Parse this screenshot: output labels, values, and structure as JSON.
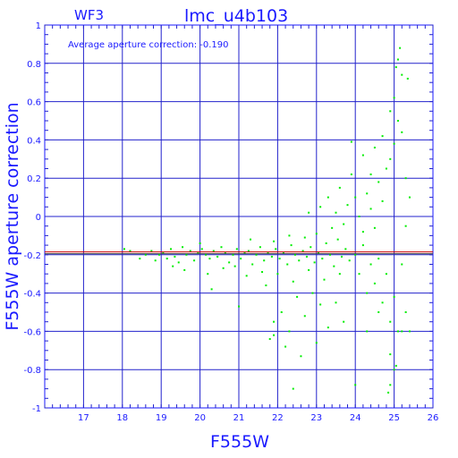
{
  "chart_data": {
    "type": "scatter",
    "title": "lmc_u4b103",
    "subtitle": "WF3",
    "annotation": "Average aperture correction: -0.190",
    "xlabel": "F555W",
    "ylabel": "F555W aperture correction",
    "xlim": [
      16,
      26
    ],
    "ylim": [
      -1,
      1
    ],
    "xticks": [
      "17",
      "18",
      "19",
      "20",
      "21",
      "22",
      "23",
      "24",
      "25",
      "26"
    ],
    "yticks": [
      "-1",
      "-0.8",
      "-0.6",
      "-0.4",
      "-0.2",
      "0",
      "0.2",
      "0.4",
      "0.6",
      "0.8",
      "1"
    ],
    "grid": true,
    "average_line": -0.19,
    "colors": {
      "axes": "#1a1aff",
      "grid": "#2222cc",
      "points": "#00ee00",
      "average_line": "#cc0000"
    },
    "series": [
      {
        "points": [
          [
            18.05,
            -0.17
          ],
          [
            18.2,
            -0.18
          ],
          [
            18.45,
            -0.22
          ],
          [
            18.6,
            -0.2
          ],
          [
            18.75,
            -0.18
          ],
          [
            18.85,
            -0.23
          ],
          [
            18.95,
            -0.2
          ],
          [
            19.05,
            -0.19
          ],
          [
            19.15,
            -0.22
          ],
          [
            19.25,
            -0.17
          ],
          [
            19.35,
            -0.21
          ],
          [
            19.45,
            -0.24
          ],
          [
            19.55,
            -0.16
          ],
          [
            19.65,
            -0.2
          ],
          [
            19.75,
            -0.18
          ],
          [
            19.85,
            -0.23
          ],
          [
            19.95,
            -0.19
          ],
          [
            20.05,
            -0.17
          ],
          [
            20.15,
            -0.2
          ],
          [
            20.25,
            -0.22
          ],
          [
            20.35,
            -0.18
          ],
          [
            20.45,
            -0.21
          ],
          [
            20.55,
            -0.16
          ],
          [
            20.65,
            -0.19
          ],
          [
            20.75,
            -0.24
          ],
          [
            20.85,
            -0.2
          ],
          [
            20.95,
            -0.17
          ],
          [
            21.05,
            -0.22
          ],
          [
            21.15,
            -0.19
          ],
          [
            21.25,
            -0.18
          ],
          [
            21.35,
            -0.25
          ],
          [
            21.45,
            -0.2
          ],
          [
            21.55,
            -0.16
          ],
          [
            21.65,
            -0.23
          ],
          [
            21.75,
            -0.19
          ],
          [
            21.85,
            -0.21
          ],
          [
            21.95,
            -0.17
          ],
          [
            22.05,
            -0.22
          ],
          [
            22.15,
            -0.19
          ],
          [
            22.25,
            -0.25
          ],
          [
            22.35,
            -0.15
          ],
          [
            22.45,
            -0.2
          ],
          [
            22.55,
            -0.23
          ],
          [
            22.65,
            -0.18
          ],
          [
            22.75,
            -0.21
          ],
          [
            22.85,
            -0.16
          ],
          [
            22.95,
            -0.24
          ],
          [
            23.05,
            -0.19
          ],
          [
            23.15,
            -0.22
          ],
          [
            23.25,
            -0.14
          ],
          [
            23.35,
            -0.2
          ],
          [
            23.45,
            -0.26
          ],
          [
            23.55,
            -0.12
          ],
          [
            23.65,
            -0.21
          ],
          [
            23.75,
            -0.17
          ],
          [
            23.85,
            -0.23
          ],
          [
            19.6,
            -0.28
          ],
          [
            20.2,
            -0.3
          ],
          [
            20.6,
            -0.27
          ],
          [
            21.2,
            -0.31
          ],
          [
            21.6,
            -0.29
          ],
          [
            22.0,
            -0.3
          ],
          [
            22.4,
            -0.34
          ],
          [
            22.8,
            -0.28
          ],
          [
            23.2,
            -0.33
          ],
          [
            23.6,
            -0.3
          ],
          [
            21.3,
            -0.12
          ],
          [
            21.9,
            -0.13
          ],
          [
            22.3,
            -0.1
          ],
          [
            22.7,
            -0.11
          ],
          [
            23.0,
            -0.09
          ],
          [
            23.4,
            -0.06
          ],
          [
            23.7,
            -0.04
          ],
          [
            19.3,
            -0.26
          ],
          [
            20.0,
            -0.14
          ],
          [
            20.9,
            -0.26
          ],
          [
            20.3,
            -0.38
          ],
          [
            21.0,
            -0.47
          ],
          [
            21.7,
            -0.36
          ],
          [
            21.9,
            -0.55
          ],
          [
            22.1,
            -0.5
          ],
          [
            22.3,
            -0.6
          ],
          [
            22.5,
            -0.42
          ],
          [
            22.7,
            -0.52
          ],
          [
            22.9,
            -0.4
          ],
          [
            23.1,
            -0.46
          ],
          [
            23.3,
            -0.58
          ],
          [
            23.5,
            -0.45
          ],
          [
            23.7,
            -0.55
          ],
          [
            21.8,
            -0.64
          ],
          [
            21.9,
            -0.62
          ],
          [
            22.6,
            -0.73
          ],
          [
            22.4,
            -0.9
          ],
          [
            22.2,
            -0.68
          ],
          [
            23.0,
            -0.66
          ],
          [
            22.8,
            0.02
          ],
          [
            23.1,
            0.05
          ],
          [
            23.3,
            0.1
          ],
          [
            23.5,
            0.02
          ],
          [
            23.6,
            0.15
          ],
          [
            23.8,
            0.06
          ],
          [
            23.9,
            0.22
          ],
          [
            24.0,
            0.1
          ],
          [
            24.1,
            0.0
          ],
          [
            24.2,
            -0.08
          ],
          [
            24.3,
            0.12
          ],
          [
            24.4,
            0.04
          ],
          [
            24.5,
            -0.06
          ],
          [
            24.6,
            0.18
          ],
          [
            24.7,
            0.08
          ],
          [
            24.8,
            0.25
          ],
          [
            24.9,
            0.3
          ],
          [
            25.0,
            0.38
          ],
          [
            25.1,
            0.5
          ],
          [
            25.2,
            0.44
          ],
          [
            25.3,
            0.2
          ],
          [
            24.0,
            -0.2
          ],
          [
            24.1,
            -0.3
          ],
          [
            24.2,
            -0.15
          ],
          [
            24.3,
            -0.4
          ],
          [
            24.4,
            -0.25
          ],
          [
            24.5,
            -0.35
          ],
          [
            24.6,
            -0.22
          ],
          [
            24.7,
            -0.45
          ],
          [
            24.8,
            -0.3
          ],
          [
            24.9,
            -0.55
          ],
          [
            25.0,
            -0.42
          ],
          [
            25.1,
            -0.6
          ],
          [
            25.2,
            -0.25
          ],
          [
            25.3,
            -0.5
          ],
          [
            24.2,
            0.32
          ],
          [
            24.5,
            0.36
          ],
          [
            24.7,
            0.42
          ],
          [
            24.9,
            0.55
          ],
          [
            25.0,
            0.62
          ],
          [
            25.05,
            0.78
          ],
          [
            25.1,
            0.82
          ],
          [
            25.15,
            0.88
          ],
          [
            25.2,
            0.74
          ],
          [
            25.35,
            0.72
          ],
          [
            23.9,
            0.39
          ],
          [
            24.4,
            0.22
          ],
          [
            25.4,
            0.1
          ],
          [
            25.3,
            -0.05
          ],
          [
            24.9,
            -0.72
          ],
          [
            25.0,
            -0.8
          ],
          [
            25.05,
            -0.78
          ],
          [
            24.85,
            -0.92
          ],
          [
            24.9,
            -0.88
          ],
          [
            25.2,
            -0.6
          ],
          [
            25.4,
            -0.6
          ],
          [
            24.0,
            -0.88
          ],
          [
            24.6,
            -0.5
          ],
          [
            24.3,
            -0.6
          ]
        ]
      }
    ]
  }
}
